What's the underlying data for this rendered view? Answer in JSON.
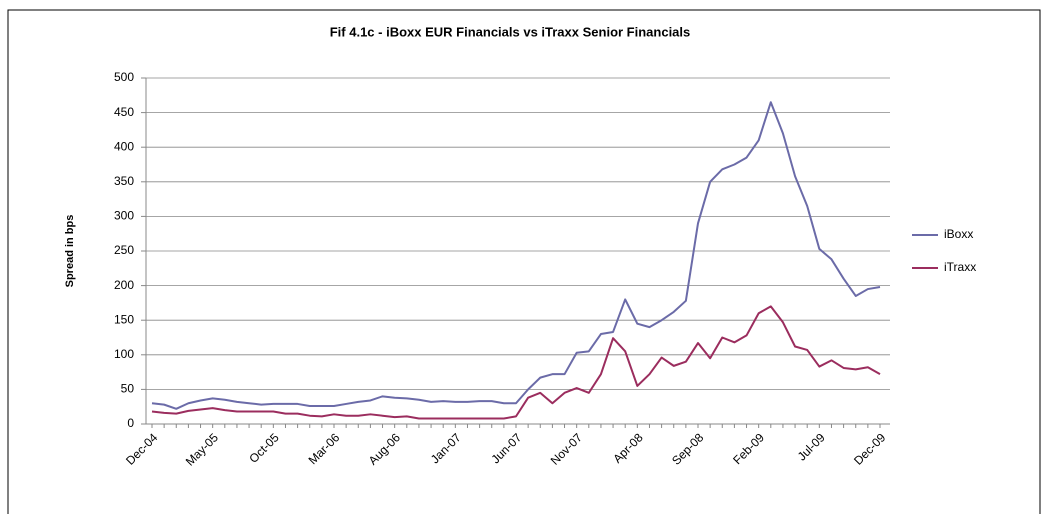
{
  "chart_data": {
    "type": "line",
    "title": "Fif 4.1c - iBoxx EUR Financials vs iTraxx Senior Financials",
    "y_label": "Spread in bps",
    "categories": [
      "Dec-04",
      null,
      null,
      null,
      null,
      "May-05",
      null,
      null,
      null,
      null,
      "Oct-05",
      null,
      null,
      null,
      null,
      "Mar-06",
      null,
      null,
      null,
      null,
      "Aug-06",
      null,
      null,
      null,
      null,
      "Jan-07",
      null,
      null,
      null,
      null,
      "Jun-07",
      null,
      null,
      null,
      null,
      "Nov-07",
      null,
      null,
      null,
      null,
      "Apr-08",
      null,
      null,
      null,
      null,
      "Sep-08",
      null,
      null,
      null,
      null,
      "Feb-09",
      null,
      null,
      null,
      null,
      "Jul-09",
      null,
      null,
      null,
      null,
      "Dec-09"
    ],
    "series": [
      {
        "name": "iBoxx",
        "color": "#6b6ba8",
        "values": [
          30,
          28,
          22,
          30,
          34,
          37,
          35,
          32,
          30,
          28,
          29,
          29,
          29,
          26,
          26,
          26,
          29,
          32,
          34,
          40,
          38,
          37,
          35,
          32,
          33,
          32,
          32,
          33,
          33,
          30,
          30,
          50,
          67,
          72,
          72,
          103,
          105,
          130,
          133,
          180,
          145,
          140,
          150,
          162,
          178,
          290,
          350,
          368,
          375,
          385,
          410,
          465,
          420,
          358,
          315,
          253,
          238,
          210,
          185,
          195,
          198
        ]
      },
      {
        "name": "iTraxx",
        "color": "#9b2d5e",
        "values": [
          18,
          16,
          15,
          19,
          21,
          23,
          20,
          18,
          18,
          18,
          18,
          15,
          15,
          12,
          11,
          14,
          12,
          12,
          14,
          12,
          10,
          11,
          8,
          8,
          8,
          8,
          8,
          8,
          8,
          8,
          11,
          38,
          45,
          30,
          45,
          52,
          45,
          72,
          124,
          105,
          55,
          72,
          96,
          84,
          90,
          117,
          95,
          125,
          118,
          128,
          160,
          170,
          147,
          112,
          107,
          83,
          92,
          81,
          79,
          82,
          72
        ]
      }
    ],
    "ylim": [
      0,
      500
    ],
    "yticks": [
      0,
      50,
      100,
      150,
      200,
      250,
      300,
      350,
      400,
      450,
      500
    ],
    "grid": true,
    "legend": "right"
  }
}
